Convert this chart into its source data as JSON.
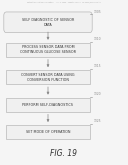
{
  "title": "FIG. 19",
  "header_text": "Patent Application Publication     Jun. 3, 2008   Sheet 13 of 22   US 2008/0119703 A1",
  "boxes": [
    {
      "label": "SELF DIAGNOSTIC OF SENSOR\nDATA",
      "ref": "1305",
      "rounded": true
    },
    {
      "label": "PROCESS SENSOR DATA FROM\nCONTINUOUS GLUCOSE SENSOR",
      "ref": "1310",
      "rounded": false
    },
    {
      "label": "CONVERT SENSOR DATA USING\nCONVERSION FUNCTION",
      "ref": "1315",
      "rounded": false
    },
    {
      "label": "PERFORM SELF-DIAGNOSTICS",
      "ref": "1320",
      "rounded": false
    },
    {
      "label": "SET MODE OF OPERATION",
      "ref": "1325",
      "rounded": false
    }
  ],
  "bg_color": "#f5f5f5",
  "box_edge_color": "#aaaaaa",
  "box_fill_color": "#f0f0f0",
  "text_color": "#333333",
  "arrow_color": "#888888",
  "header_color": "#aaaaaa",
  "ref_color": "#888888",
  "fig_label_color": "#333333"
}
